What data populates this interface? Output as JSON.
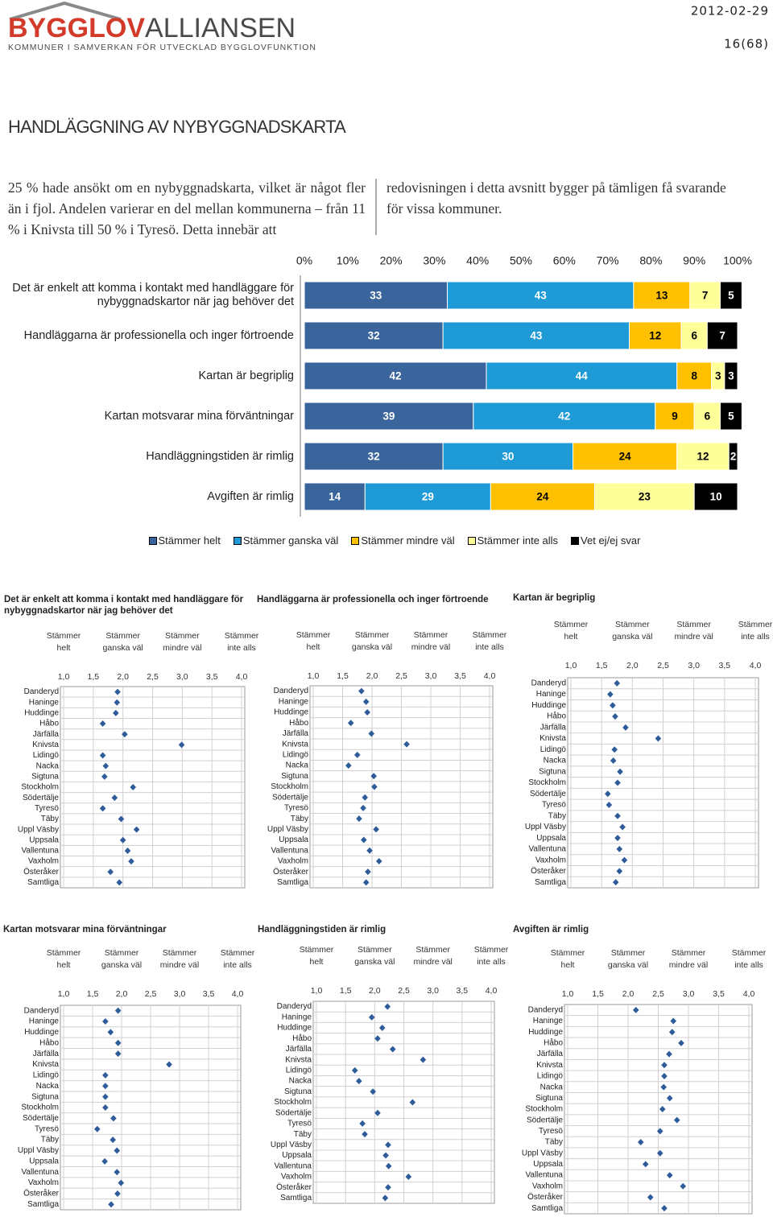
{
  "header": {
    "logo": {
      "brand_primary": "BYGGLOV",
      "brand_secondary": "ALLIANSEN",
      "tagline": "KOMMUNER I SAMVERKAN FÖR UTVECKLAD BYGGLOVFUNKTION"
    },
    "date": "2012-02-29",
    "page": "16(68)"
  },
  "section": {
    "title": "HANDLÄGGNING AV NYBYGGNADSKARTA",
    "paragraphs": [
      "25 % hade ansökt om en nybyggnadskarta, vilket är något fler än i fjol. Andelen varierar en del mellan kommunerna – från 11 % i Knivsta till 50 % i Tyresö. Detta innebär att",
      "redovisningen i detta avsnitt bygger på tämligen få svarande för vissa kommuner."
    ]
  },
  "chart_data": [
    {
      "type": "bar",
      "orientation": "horizontal",
      "stacked": true,
      "categories": [
        "Det är enkelt att komma i kontakt med handläggare för nybyggnadskartor när jag behöver det",
        "Handläggarna är professionella och inger förtroende",
        "Kartan är begriplig",
        "Kartan motsvarar mina förväntningar",
        "Handläggningstiden är rimlig",
        "Avgiften är rimlig"
      ],
      "series": [
        {
          "name": "Stämmer helt",
          "color": "#3a649c",
          "label_color": "#ffffff",
          "values": [
            33,
            32,
            42,
            39,
            32,
            14
          ]
        },
        {
          "name": "Stämmer ganska väl",
          "color": "#1e9ad6",
          "label_color": "#ffffff",
          "values": [
            43,
            43,
            44,
            42,
            30,
            29
          ]
        },
        {
          "name": "Stämmer mindre väl",
          "color": "#ffc000",
          "label_color": "#000000",
          "values": [
            13,
            12,
            8,
            9,
            24,
            24
          ]
        },
        {
          "name": "Stämmer inte alls",
          "color": "#ffff99",
          "label_color": "#000000",
          "values": [
            7,
            6,
            3,
            6,
            12,
            23
          ]
        },
        {
          "name": "Vet ej/ej svar",
          "color": "#000000",
          "label_color": "#ffffff",
          "values": [
            5,
            7,
            3,
            5,
            2,
            10
          ]
        }
      ],
      "xlim": [
        0,
        100
      ],
      "xticks": [
        {
          "value": 0,
          "label": "0%"
        },
        {
          "value": 10,
          "label": "10%"
        },
        {
          "value": 20,
          "label": "20%"
        },
        {
          "value": 30,
          "label": "30%"
        },
        {
          "value": 40,
          "label": "40%"
        },
        {
          "value": 50,
          "label": "50%"
        },
        {
          "value": 60,
          "label": "60%"
        },
        {
          "value": 70,
          "label": "70%"
        },
        {
          "value": 80,
          "label": "80%"
        },
        {
          "value": 90,
          "label": "90%"
        },
        {
          "value": 100,
          "label": "100%"
        }
      ],
      "grid": false,
      "legend": "bottom"
    },
    {
      "type": "dot",
      "title": "Det är enkelt att komma i kontakt med handläggare för nybyggnadskartor när jag behöver det",
      "color": "#2e5c9a",
      "grid": true,
      "column_labels": [
        {
          "value": 1,
          "label": "Stämmer helt"
        },
        {
          "value": 2,
          "label": "Stämmer ganska väl"
        },
        {
          "value": 3,
          "label": "Stämmer mindre väl"
        },
        {
          "value": 4,
          "label": "Stämmer inte alls"
        }
      ],
      "xlim": [
        1,
        4
      ],
      "xticks": [
        {
          "value": 1,
          "label": "1,0"
        },
        {
          "value": 1.5,
          "label": "1,5"
        },
        {
          "value": 2,
          "label": "2,0"
        },
        {
          "value": 2.5,
          "label": "2,5"
        },
        {
          "value": 3,
          "label": "3,0"
        },
        {
          "value": 3.5,
          "label": "3,5"
        },
        {
          "value": 4,
          "label": "4,0"
        }
      ],
      "categories": [
        "Danderyd",
        "Haninge",
        "Huddinge",
        "Håbo",
        "Järfälla",
        "Knivsta",
        "Lidingö",
        "Nacka",
        "Sigtuna",
        "Stockholm",
        "Södertälje",
        "Tyresö",
        "Täby",
        "Uppl Väsby",
        "Uppsala",
        "Vallentuna",
        "Vaxholm",
        "Österåker",
        "Samtliga"
      ],
      "values": [
        1.91,
        1.9,
        1.88,
        1.66,
        2.03,
        2.99,
        1.66,
        1.71,
        1.69,
        2.17,
        1.86,
        1.66,
        1.97,
        2.23,
        2.0,
        2.08,
        2.14,
        1.79,
        1.94
      ]
    },
    {
      "type": "dot",
      "title": "Handläggarna är professionella och inger förtroende",
      "color": "#2e5c9a",
      "grid": true,
      "column_labels": [
        {
          "value": 1,
          "label": "Stämmer helt"
        },
        {
          "value": 2,
          "label": "Stämmer ganska väl"
        },
        {
          "value": 3,
          "label": "Stämmer mindre väl"
        },
        {
          "value": 4,
          "label": "Stämmer inte alls"
        }
      ],
      "xlim": [
        1,
        4
      ],
      "xticks": [
        {
          "value": 1,
          "label": "1,0"
        },
        {
          "value": 1.5,
          "label": "1,5"
        },
        {
          "value": 2,
          "label": "2,0"
        },
        {
          "value": 2.5,
          "label": "2,5"
        },
        {
          "value": 3,
          "label": "3,0"
        },
        {
          "value": 3.5,
          "label": "3,5"
        },
        {
          "value": 4,
          "label": "4,0"
        }
      ],
      "categories": [
        "Danderyd",
        "Haninge",
        "Huddinge",
        "Håbo",
        "Järfälla",
        "Knivsta",
        "Lidingö",
        "Nacka",
        "Sigtuna",
        "Stockholm",
        "Södertälje",
        "Tyresö",
        "Täby",
        "Uppl Väsby",
        "Uppsala",
        "Vallentuna",
        "Vaxholm",
        "Österåker",
        "Samtliga"
      ],
      "values": [
        1.82,
        1.9,
        1.92,
        1.64,
        1.99,
        2.59,
        1.75,
        1.6,
        2.03,
        2.04,
        1.88,
        1.85,
        1.78,
        2.07,
        1.86,
        1.96,
        2.12,
        1.93,
        1.9
      ]
    },
    {
      "type": "dot",
      "title": "Kartan är begriplig",
      "color": "#2e5c9a",
      "grid": true,
      "column_labels": [
        {
          "value": 1,
          "label": "Stämmer helt"
        },
        {
          "value": 2,
          "label": "Stämmer ganska väl"
        },
        {
          "value": 3,
          "label": "Stämmer mindre väl"
        },
        {
          "value": 4,
          "label": "Stämmer inte alls"
        }
      ],
      "xlim": [
        1,
        4
      ],
      "xticks": [
        {
          "value": 1,
          "label": "1,0"
        },
        {
          "value": 1.5,
          "label": "1,5"
        },
        {
          "value": 2,
          "label": "2,0"
        },
        {
          "value": 2.5,
          "label": "2,5"
        },
        {
          "value": 3,
          "label": "3,0"
        },
        {
          "value": 3.5,
          "label": "3,5"
        },
        {
          "value": 4,
          "label": "4,0"
        }
      ],
      "categories": [
        "Danderyd",
        "Haninge",
        "Huddinge",
        "Håbo",
        "Järfälla",
        "Knivsta",
        "Lidingö",
        "Nacka",
        "Sigtuna",
        "Stockholm",
        "Södertälje",
        "Tyresö",
        "Täby",
        "Uppl Väsby",
        "Uppsala",
        "Vallentuna",
        "Vaxholm",
        "Österåker",
        "Samtliga"
      ],
      "values": [
        1.75,
        1.64,
        1.68,
        1.72,
        1.89,
        2.42,
        1.71,
        1.69,
        1.8,
        1.76,
        1.6,
        1.62,
        1.76,
        1.84,
        1.76,
        1.79,
        1.87,
        1.79,
        1.73
      ]
    },
    {
      "type": "dot",
      "title": "Kartan motsvarar mina förväntningar",
      "color": "#2e5c9a",
      "grid": true,
      "column_labels": [
        {
          "value": 1,
          "label": "Stämmer helt"
        },
        {
          "value": 2,
          "label": "Stämmer ganska väl"
        },
        {
          "value": 3,
          "label": "Stämmer mindre väl"
        },
        {
          "value": 4,
          "label": "Stämmer inte alls"
        }
      ],
      "xlim": [
        1,
        4
      ],
      "xticks": [
        {
          "value": 1,
          "label": "1,0"
        },
        {
          "value": 1.5,
          "label": "1,5"
        },
        {
          "value": 2,
          "label": "2,0"
        },
        {
          "value": 2.5,
          "label": "2,5"
        },
        {
          "value": 3,
          "label": "3,0"
        },
        {
          "value": 3.5,
          "label": "3,5"
        },
        {
          "value": 4,
          "label": "4,0"
        }
      ],
      "categories": [
        "Danderyd",
        "Haninge",
        "Huddinge",
        "Håbo",
        "Järfälla",
        "Knivsta",
        "Lidingö",
        "Nacka",
        "Sigtuna",
        "Stockholm",
        "Södertälje",
        "Tyresö",
        "Täby",
        "Uppl Väsby",
        "Uppsala",
        "Vallentuna",
        "Vaxholm",
        "Österåker",
        "Samtliga"
      ],
      "values": [
        1.94,
        1.72,
        1.81,
        1.94,
        1.94,
        2.82,
        1.72,
        1.72,
        1.72,
        1.72,
        1.86,
        1.58,
        1.85,
        1.92,
        1.71,
        1.92,
        1.99,
        1.93,
        1.82
      ]
    },
    {
      "type": "dot",
      "title": "Handläggningstiden är rimlig",
      "color": "#2e5c9a",
      "grid": true,
      "column_labels": [
        {
          "value": 1,
          "label": "Stämmer helt"
        },
        {
          "value": 2,
          "label": "Stämmer ganska väl"
        },
        {
          "value": 3,
          "label": "Stämmer mindre väl"
        },
        {
          "value": 4,
          "label": "Stämmer inte alls"
        }
      ],
      "xlim": [
        1,
        4
      ],
      "xticks": [
        {
          "value": 1,
          "label": "1,0"
        },
        {
          "value": 1.5,
          "label": "1,5"
        },
        {
          "value": 2,
          "label": "2,0"
        },
        {
          "value": 2.5,
          "label": "2,5"
        },
        {
          "value": 3,
          "label": "3,0"
        },
        {
          "value": 3.5,
          "label": "3,5"
        },
        {
          "value": 4,
          "label": "4,0"
        }
      ],
      "categories": [
        "Danderyd",
        "Haninge",
        "Huddinge",
        "Håbo",
        "Järfälla",
        "Knivsta",
        "Lidingö",
        "Nacka",
        "Sigtuna",
        "Stockholm",
        "Södertälje",
        "Tyresö",
        "Täby",
        "Uppl Väsby",
        "Uppsala",
        "Vallentuna",
        "Vaxholm",
        "Österåker",
        "Samtliga"
      ],
      "values": [
        2.22,
        1.95,
        2.13,
        2.05,
        2.31,
        2.83,
        1.66,
        1.73,
        1.97,
        2.65,
        2.05,
        1.79,
        1.83,
        2.23,
        2.19,
        2.24,
        2.58,
        2.23,
        2.18
      ]
    },
    {
      "type": "dot",
      "title": "Avgiften är rimlig",
      "color": "#2e5c9a",
      "grid": true,
      "column_labels": [
        {
          "value": 1,
          "label": "Stämmer helt"
        },
        {
          "value": 2,
          "label": "Stämmer ganska väl"
        },
        {
          "value": 3,
          "label": "Stämmer mindre väl"
        },
        {
          "value": 4,
          "label": "Stämmer inte alls"
        }
      ],
      "xlim": [
        1,
        4
      ],
      "xticks": [
        {
          "value": 1,
          "label": "1,0"
        },
        {
          "value": 1.5,
          "label": "1,5"
        },
        {
          "value": 2,
          "label": "2,0"
        },
        {
          "value": 2.5,
          "label": "2,5"
        },
        {
          "value": 3,
          "label": "3,0"
        },
        {
          "value": 3.5,
          "label": "3,5"
        },
        {
          "value": 4,
          "label": "4,0"
        }
      ],
      "categories": [
        "Danderyd",
        "Haninge",
        "Huddinge",
        "Håbo",
        "Järfälla",
        "Knivsta",
        "Lidingö",
        "Nacka",
        "Sigtuna",
        "Stockholm",
        "Södertälje",
        "Tyresö",
        "Täby",
        "Uppl Väsby",
        "Uppsala",
        "Vallentuna",
        "Vaxholm",
        "Österåker",
        "Samtliga"
      ],
      "values": [
        2.13,
        2.75,
        2.73,
        2.88,
        2.68,
        2.6,
        2.6,
        2.59,
        2.69,
        2.57,
        2.81,
        2.53,
        2.21,
        2.53,
        2.29,
        2.69,
        2.91,
        2.37,
        2.6
      ]
    }
  ]
}
